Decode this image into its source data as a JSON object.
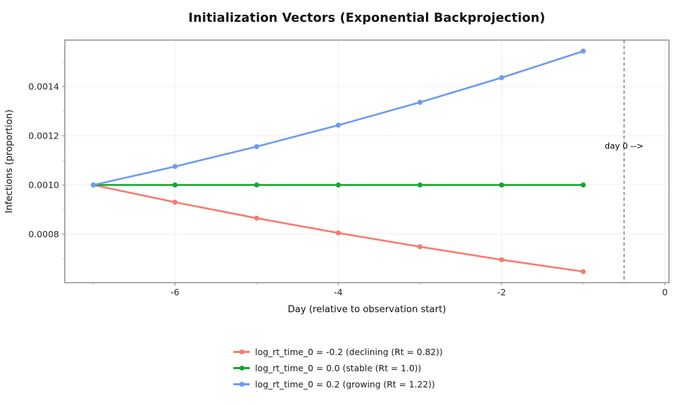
{
  "title": "Initialization Vectors (Exponential Backprojection)",
  "chart_data": {
    "type": "line",
    "title": "Initialization Vectors (Exponential Backprojection)",
    "xlabel": "Day (relative to observation start)",
    "ylabel": "Infections (proportion)",
    "x": [
      -7,
      -6,
      -5,
      -4,
      -3,
      -2,
      -1
    ],
    "series": [
      {
        "name": "log_rt_time_0 = -0.2 (declining (Rt = 0.82))",
        "color": "#F87C70",
        "values": [
          0.001,
          0.00093,
          0.000865,
          0.000805,
          0.000749,
          0.000696,
          0.000648
        ]
      },
      {
        "name": "log_rt_time_0 = 0.0 (stable (Rt = 1.0))",
        "color": "#13A62F",
        "values": [
          0.001,
          0.001,
          0.001,
          0.001,
          0.001,
          0.001,
          0.001
        ]
      },
      {
        "name": "log_rt_time_0 = 0.2 (growing (Rt = 1.22))",
        "color": "#6C9BF2",
        "values": [
          0.001,
          0.001075,
          0.001156,
          0.001243,
          0.001336,
          0.001436,
          0.001544
        ]
      }
    ],
    "xlim": [
      -7.35,
      0.05
    ],
    "ylim": [
      0.000603,
      0.001589
    ],
    "x_major_ticks": [
      -6,
      -4,
      -2,
      0
    ],
    "x_major_tick_labels": [
      "-6",
      "-4",
      "-2",
      "0"
    ],
    "x_minor_ticks": [
      -7,
      -5,
      -3,
      -1
    ],
    "y_major_ticks": [
      0.0008,
      0.001,
      0.0012,
      0.0014
    ],
    "y_major_tick_labels": [
      "0.0008",
      "0.0010",
      "0.0012",
      "0.0014"
    ],
    "y_minor_ticks": [
      0.0007,
      0.0009,
      0.0011,
      0.0013,
      0.0015
    ],
    "grid": true,
    "legend_position": "bottom-center",
    "vline": {
      "x": -0.5,
      "style": "dashed",
      "color": "#555555"
    },
    "annotation": {
      "text": "day 0 -->",
      "x": -0.5,
      "y": 0.001148
    },
    "colors": {
      "plot_border": "#7F7F7F",
      "gridline": "#EFEFEF",
      "tick_mark": "#999999",
      "tick_label": "#262626",
      "axis_label": "#111111",
      "annotation_text": "#000000",
      "background": "#FFFFFF"
    }
  }
}
